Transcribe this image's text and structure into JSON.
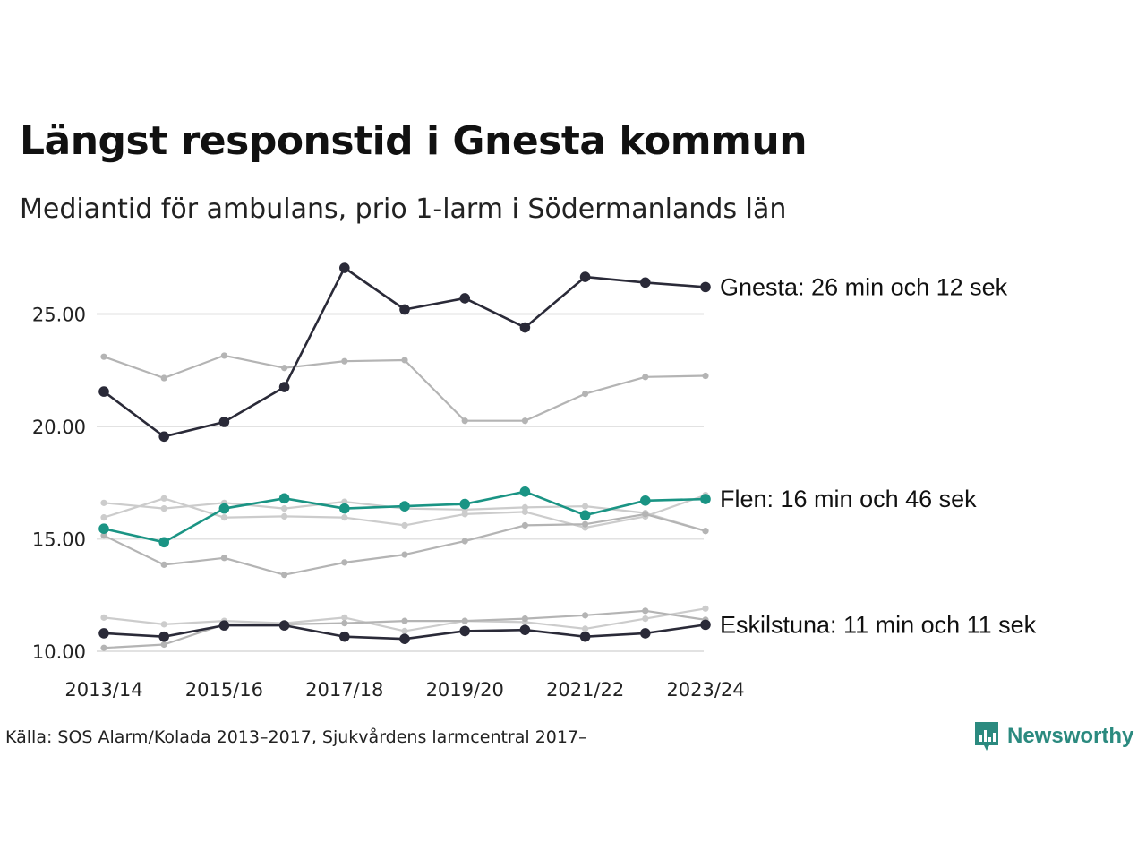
{
  "title": "Längst responstid i Gnesta kommun",
  "subtitle": "Mediantid för ambulans, prio 1-larm i Södermanlands län",
  "source": "Källa: SOS Alarm/Kolada 2013–2017, Sjukvårdens larmcentral 2017–",
  "brand": {
    "name": "Newsworthy",
    "icon": "newsworthy-logo-icon",
    "color": "#2b8a7f"
  },
  "colors": {
    "highlight_dark": "#2a2a38",
    "highlight_teal": "#1a9484",
    "other": "#b4b4b4",
    "other_light": "#cccccc",
    "grid": "#e2e2e2",
    "axis_text": "#222222"
  },
  "chart_data": {
    "type": "line",
    "x": [
      "2013/14",
      "2014/15",
      "2015/16",
      "2016/17",
      "2017/18",
      "2018/19",
      "2019/20",
      "2020/21",
      "2021/22",
      "2022/23",
      "2023/24"
    ],
    "x_tick_labels": [
      "2013/14",
      "2015/16",
      "2017/18",
      "2019/20",
      "2021/22",
      "2023/24"
    ],
    "y_tick_labels": [
      "10.00",
      "15.00",
      "20.00",
      "25.00"
    ],
    "ylim": [
      10,
      27
    ],
    "grid": "horizontal",
    "xlabel": "",
    "ylabel": "",
    "series": [
      {
        "values": [
          23.1,
          22.15,
          23.15,
          22.6,
          22.9,
          22.95,
          20.25,
          20.25,
          21.45,
          22.2,
          22.25
        ],
        "style": "other"
      },
      {
        "values": [
          16.6,
          16.35,
          16.6,
          16.35,
          16.65,
          16.35,
          16.3,
          16.4,
          16.45,
          16.15,
          15.35
        ],
        "style": "other_light"
      },
      {
        "values": [
          15.95,
          16.8,
          15.95,
          16.0,
          15.95,
          15.6,
          16.1,
          16.2,
          15.5,
          16.0,
          16.95
        ],
        "style": "other_light"
      },
      {
        "values": [
          15.15,
          13.85,
          14.15,
          13.4,
          13.95,
          14.3,
          14.9,
          15.6,
          15.65,
          16.1,
          15.35
        ],
        "style": "other"
      },
      {
        "values": [
          11.5,
          11.2,
          11.35,
          11.25,
          11.5,
          10.9,
          11.35,
          11.3,
          11.0,
          11.45,
          11.9
        ],
        "style": "other_light"
      },
      {
        "values": [
          10.15,
          10.3,
          11.2,
          11.2,
          11.25,
          11.35,
          11.35,
          11.45,
          11.6,
          11.8,
          11.4
        ],
        "style": "other"
      },
      {
        "name": "Gnesta",
        "label": "Gnesta: 26 min och 12 sek",
        "values": [
          21.55,
          19.55,
          20.2,
          21.75,
          27.05,
          25.2,
          25.7,
          24.4,
          26.65,
          26.4,
          26.2
        ],
        "style": "highlight_dark"
      },
      {
        "name": "Flen",
        "label": "Flen: 16 min och 46 sek",
        "values": [
          15.45,
          14.85,
          16.35,
          16.8,
          16.35,
          16.45,
          16.55,
          17.1,
          16.05,
          16.7,
          16.77
        ],
        "style": "highlight_teal"
      },
      {
        "name": "Eskilstuna",
        "label": "Eskilstuna: 11 min och 11 sek",
        "values": [
          10.8,
          10.65,
          11.15,
          11.15,
          10.65,
          10.55,
          10.9,
          10.95,
          10.65,
          10.8,
          11.18
        ],
        "style": "highlight_dark"
      }
    ]
  }
}
